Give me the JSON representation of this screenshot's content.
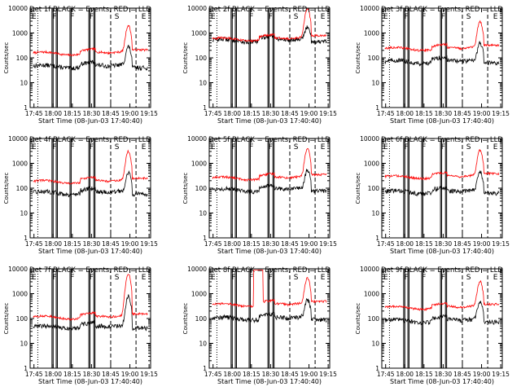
{
  "figure": {
    "x_label": "Start Time (08-Jun-03 17:40:40)",
    "y_label": "Counts/sec",
    "series_names": [
      "Events",
      "LLD"
    ],
    "colors": {
      "events": "#000000",
      "lld": "#ff0000",
      "axes": "#000000",
      "background": "#ffffff"
    }
  },
  "chart_data": {
    "type": "line",
    "y_scale": "log",
    "ylim": [
      1,
      10000
    ],
    "y_ticks": [
      "1",
      "10",
      "100",
      "1000",
      "10000"
    ],
    "x_range_hours": [
      17.7,
      19.27
    ],
    "x_ticks": [
      {
        "label": "17:45",
        "hour": 17.75
      },
      {
        "label": "18:00",
        "hour": 18.0
      },
      {
        "label": "18:15",
        "hour": 18.25
      },
      {
        "label": "18:30",
        "hour": 18.5
      },
      {
        "label": "18:45",
        "hour": 18.75
      },
      {
        "label": "19:00",
        "hour": 19.0
      },
      {
        "label": "19:15",
        "hour": 19.25
      }
    ],
    "event_markers": [
      {
        "label": "E",
        "hour": 17.7
      },
      {
        "label": "F",
        "hour": 17.97
      },
      {
        "label": "F",
        "hour": 18.2
      },
      {
        "label": "F",
        "hour": 18.45
      },
      {
        "label": "S",
        "hour": 18.78
      },
      {
        "label": "E",
        "hour": 19.13
      }
    ],
    "reference_lines": [
      {
        "hour": 17.8,
        "style": "dotted"
      },
      {
        "hour": 17.985,
        "style": "solid"
      },
      {
        "hour": 18.0,
        "style": "solid"
      },
      {
        "hour": 18.04,
        "style": "solid"
      },
      {
        "hour": 18.055,
        "style": "solid"
      },
      {
        "hour": 18.22,
        "style": "solid"
      },
      {
        "hour": 18.235,
        "style": "solid"
      },
      {
        "hour": 18.465,
        "style": "solid"
      },
      {
        "hour": 18.48,
        "style": "solid"
      },
      {
        "hour": 18.53,
        "style": "solid"
      },
      {
        "hour": 18.545,
        "style": "solid"
      },
      {
        "hour": 18.75,
        "style": "dashed"
      },
      {
        "hour": 19.08,
        "style": "dashed"
      }
    ],
    "panels": [
      {
        "title": "Det 1f BLACK = Events, RED = LLD",
        "events_base": 45,
        "lld_base": 150,
        "flare_peak": 1800,
        "gap_lld": false
      },
      {
        "title": "Det 2f BLACK = Events, RED = LLD",
        "events_base": 500,
        "lld_base": 560,
        "flare_peak": 9000,
        "gap_lld": false
      },
      {
        "title": "Det 3f BLACK = Events, RED = LLD",
        "events_base": 70,
        "lld_base": 230,
        "flare_peak": 2500,
        "gap_lld": false
      },
      {
        "title": "Det 4f BLACK = Events, RED = LLD",
        "events_base": 65,
        "lld_base": 180,
        "flare_peak": 2800,
        "gap_lld": false
      },
      {
        "title": "Det 5f BLACK = Events, RED = LLD",
        "events_base": 85,
        "lld_base": 250,
        "flare_peak": 3500,
        "gap_lld": false
      },
      {
        "title": "Det 6f BLACK = Events, RED = LLD",
        "events_base": 70,
        "lld_base": 280,
        "flare_peak": 3000,
        "gap_lld": false
      },
      {
        "title": "Det 7f BLACK = Events, RED = LLD",
        "events_base": 45,
        "lld_base": 110,
        "flare_peak": 6000,
        "gap_lld": false
      },
      {
        "title": "Det 8f BLACK = Events, RED = LLD",
        "events_base": 100,
        "lld_base": 350,
        "flare_peak": 3800,
        "gap_lld": true
      },
      {
        "title": "Det 9f BLACK = Events, RED = LLD",
        "events_base": 80,
        "lld_base": 270,
        "flare_peak": 2800,
        "gap_lld": false
      }
    ]
  }
}
